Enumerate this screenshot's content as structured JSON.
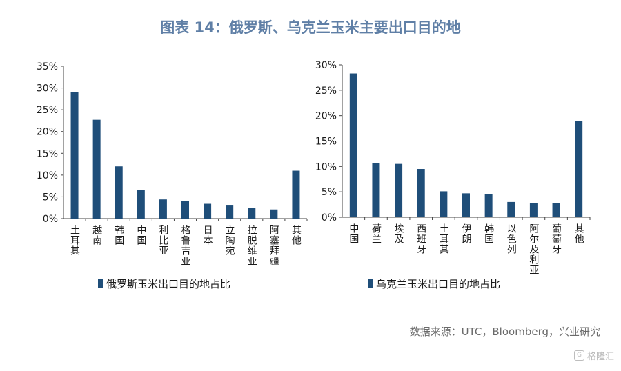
{
  "title": "图表 14：俄罗斯、乌克兰玉米主要出口目的地",
  "source": "数据来源：UTC，Bloomberg，兴业研究",
  "watermark": "格隆汇",
  "colors": {
    "bar": "#1f4e79",
    "title": "#5f7fa6"
  },
  "chart_data": [
    {
      "type": "bar",
      "categories": [
        "土耳其",
        "越南",
        "韩国",
        "中国",
        "利比亚",
        "格鲁吉亚",
        "日本",
        "立陶宛",
        "拉脱维亚",
        "阿塞拜疆",
        "其他"
      ],
      "values": [
        0.29,
        0.227,
        0.12,
        0.066,
        0.044,
        0.04,
        0.034,
        0.03,
        0.025,
        0.021,
        0.11
      ],
      "yticks": [
        "0%",
        "5%",
        "10%",
        "15%",
        "20%",
        "25%",
        "30%",
        "35%"
      ],
      "ylim": [
        0,
        0.35
      ],
      "legend": "俄罗斯玉米出口目的地占比"
    },
    {
      "type": "bar",
      "categories": [
        "中国",
        "荷兰",
        "埃及",
        "西班牙",
        "土耳其",
        "伊朗",
        "韩国",
        "以色列",
        "阿尔及利亚",
        "葡萄牙",
        "其他"
      ],
      "values": [
        0.283,
        0.106,
        0.105,
        0.095,
        0.051,
        0.047,
        0.046,
        0.03,
        0.028,
        0.028,
        0.19
      ],
      "yticks": [
        "0%",
        "5%",
        "10%",
        "15%",
        "20%",
        "25%",
        "30%"
      ],
      "ylim": [
        0,
        0.3
      ],
      "legend": "乌克兰玉米出口目的地占比"
    }
  ]
}
